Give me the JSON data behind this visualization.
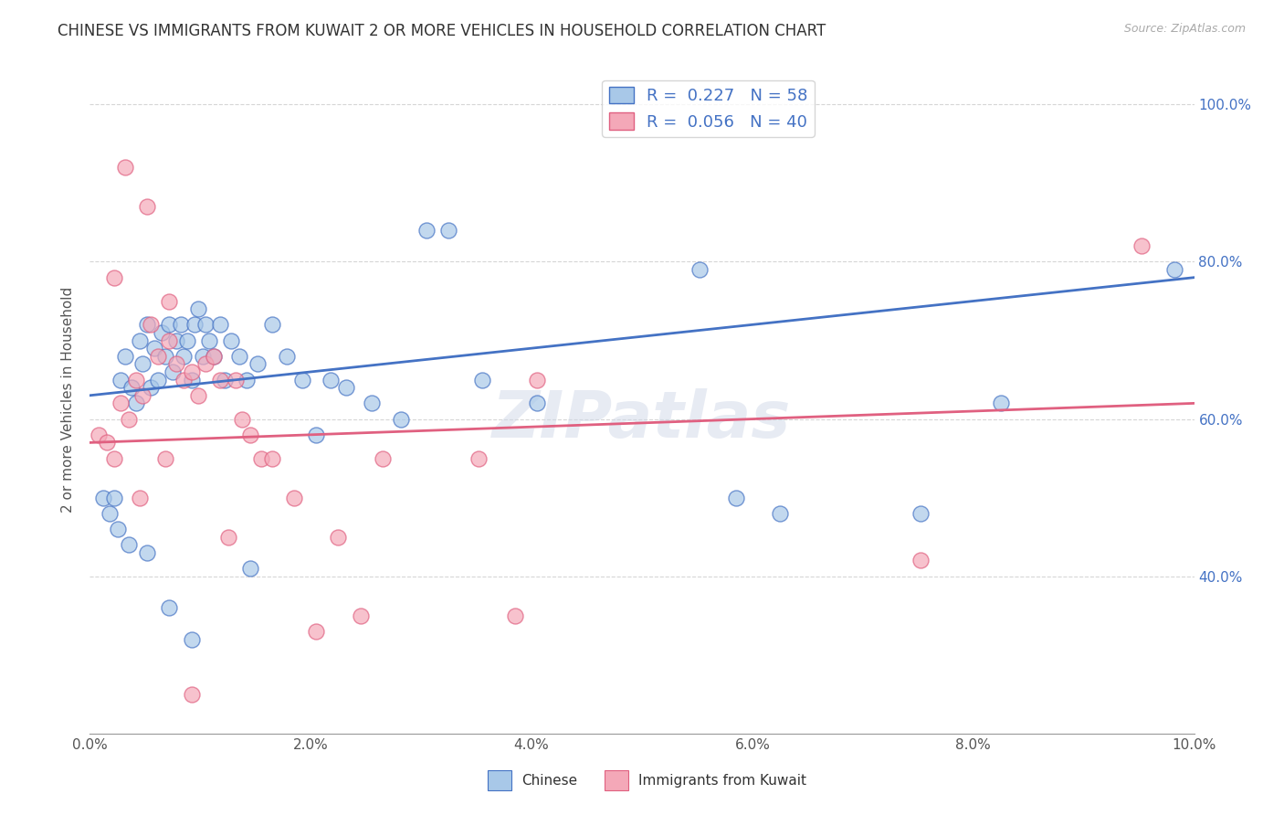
{
  "title": "CHINESE VS IMMIGRANTS FROM KUWAIT 2 OR MORE VEHICLES IN HOUSEHOLD CORRELATION CHART",
  "source": "Source: ZipAtlas.com",
  "ylabel": "2 or more Vehicles in Household",
  "legend_label1": "Chinese",
  "legend_label2": "Immigrants from Kuwait",
  "R1": 0.227,
  "N1": 58,
  "R2": 0.056,
  "N2": 40,
  "xlim": [
    0.0,
    10.0
  ],
  "ylim": [
    20.0,
    105.0
  ],
  "color_chinese": "#a8c8e8",
  "color_kuwait": "#f4a8b8",
  "line_color_chinese": "#4472c4",
  "line_color_kuwait": "#e06080",
  "background_color": "#ffffff",
  "grid_color": "#cccccc",
  "chinese_x": [
    0.12,
    0.18,
    0.22,
    0.28,
    0.32,
    0.38,
    0.42,
    0.45,
    0.48,
    0.52,
    0.55,
    0.58,
    0.62,
    0.65,
    0.68,
    0.72,
    0.75,
    0.78,
    0.82,
    0.85,
    0.88,
    0.92,
    0.95,
    0.98,
    1.02,
    1.05,
    1.08,
    1.12,
    1.18,
    1.22,
    1.28,
    1.35,
    1.42,
    1.52,
    1.65,
    1.78,
    1.92,
    2.05,
    2.18,
    2.32,
    2.55,
    2.82,
    3.05,
    3.25,
    3.55,
    4.05,
    5.52,
    5.85,
    6.25,
    7.52,
    8.25,
    9.82,
    0.35,
    0.52,
    0.72,
    0.92,
    1.45,
    0.25
  ],
  "chinese_y": [
    50,
    48,
    50,
    65,
    68,
    64,
    62,
    70,
    67,
    72,
    64,
    69,
    65,
    71,
    68,
    72,
    66,
    70,
    72,
    68,
    70,
    65,
    72,
    74,
    68,
    72,
    70,
    68,
    72,
    65,
    70,
    68,
    65,
    67,
    72,
    68,
    65,
    58,
    65,
    64,
    62,
    60,
    84,
    84,
    65,
    62,
    79,
    50,
    48,
    48,
    62,
    79,
    44,
    43,
    36,
    32,
    41,
    46
  ],
  "kuwait_x": [
    0.08,
    0.15,
    0.22,
    0.28,
    0.35,
    0.42,
    0.48,
    0.55,
    0.62,
    0.68,
    0.72,
    0.78,
    0.85,
    0.92,
    0.98,
    1.05,
    1.12,
    1.18,
    1.25,
    1.32,
    1.38,
    1.45,
    1.55,
    1.65,
    1.85,
    2.05,
    2.25,
    2.45,
    2.65,
    3.52,
    0.32,
    0.52,
    0.72,
    0.92,
    0.22,
    0.45,
    3.85,
    7.52,
    9.52,
    4.05
  ],
  "kuwait_y": [
    58,
    57,
    55,
    62,
    60,
    65,
    63,
    72,
    68,
    55,
    70,
    67,
    65,
    66,
    63,
    67,
    68,
    65,
    45,
    65,
    60,
    58,
    55,
    55,
    50,
    33,
    45,
    35,
    55,
    55,
    92,
    87,
    75,
    25,
    78,
    50,
    35,
    42,
    82,
    65
  ],
  "blue_line_x0": 0.0,
  "blue_line_y0": 63.0,
  "blue_line_x1": 10.0,
  "blue_line_y1": 78.0,
  "pink_line_x0": 0.0,
  "pink_line_y0": 57.0,
  "pink_line_x1": 10.0,
  "pink_line_y1": 62.0
}
